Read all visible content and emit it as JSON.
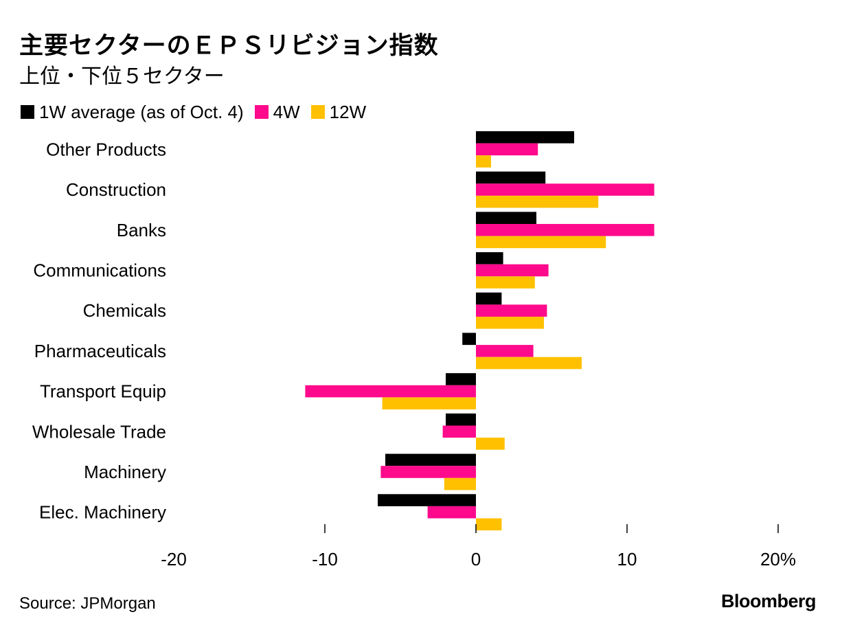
{
  "title": "主要セクターのＥＰＳリビジョン指数",
  "subtitle": "上位・下位５セクター",
  "source": "Source: JPMorgan",
  "brand": "Bloomberg",
  "colors": {
    "series_1w": "#000000",
    "series_4w": "#ff0a8c",
    "series_12w": "#ffc000"
  },
  "chart_data": {
    "type": "bar",
    "orientation": "horizontal",
    "title": "主要セクターのＥＰＳリビジョン指数",
    "subtitle": "上位・下位５セクター",
    "categories": [
      "Other Products",
      "Construction",
      "Banks",
      "Communications",
      "Chemicals",
      "Pharmaceuticals",
      "Transport Equip",
      "Wholesale Trade",
      "Machinery",
      "Elec. Machinery"
    ],
    "series": [
      {
        "name": "1W average (as of Oct. 4)",
        "color": "#000000",
        "values": [
          6.5,
          4.6,
          4.0,
          1.8,
          1.7,
          -0.9,
          -2.0,
          -2.0,
          -6.0,
          -6.5
        ]
      },
      {
        "name": "4W",
        "color": "#ff0a8c",
        "values": [
          4.1,
          11.8,
          11.8,
          4.8,
          4.7,
          3.8,
          -11.3,
          -2.2,
          -6.3,
          -3.2
        ]
      },
      {
        "name": "12W",
        "color": "#ffc000",
        "values": [
          1.0,
          8.1,
          8.6,
          3.9,
          4.5,
          7.0,
          -6.2,
          1.9,
          -2.1,
          1.7
        ]
      }
    ],
    "xlim": [
      -20,
      20
    ],
    "xticks": [
      -20,
      -10,
      0,
      10,
      20
    ],
    "xtick_labels": [
      "-20",
      "-10",
      "0",
      "10",
      "20%"
    ],
    "legend_position": "top-left",
    "grid": false
  }
}
